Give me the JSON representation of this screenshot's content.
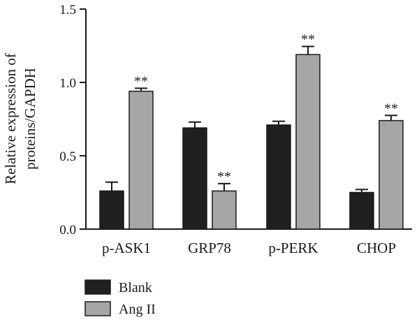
{
  "chart_data": {
    "type": "bar",
    "title": "",
    "xlabel": "",
    "ylabel_lines": [
      "Relative expression of",
      "proteins/GAPDH"
    ],
    "ylim": [
      0,
      1.5
    ],
    "yticks": [
      0.0,
      0.5,
      1.0,
      1.5
    ],
    "ytick_labels": [
      "0.0",
      "0.5",
      "1.0",
      "1.5"
    ],
    "categories": [
      "p-ASK1",
      "GRP78",
      "p-PERK",
      "CHOP"
    ],
    "series": [
      {
        "name": "Blank",
        "values": [
          0.26,
          0.69,
          0.71,
          0.25
        ],
        "errors": [
          0.06,
          0.04,
          0.025,
          0.02
        ],
        "color": "#1f1f1f"
      },
      {
        "name": "Ang II",
        "values": [
          0.94,
          0.26,
          1.19,
          0.74
        ],
        "errors": [
          0.02,
          0.05,
          0.055,
          0.035
        ],
        "color": "#a6a6a6"
      }
    ],
    "annotations": [
      {
        "category": "p-ASK1",
        "series": "Ang II",
        "text": "**"
      },
      {
        "category": "GRP78",
        "series": "Ang II",
        "text": "**"
      },
      {
        "category": "p-PERK",
        "series": "Ang II",
        "text": "**"
      },
      {
        "category": "CHOP",
        "series": "Ang II",
        "text": "**"
      }
    ],
    "legend_position": "bottom-left",
    "grid": false
  }
}
